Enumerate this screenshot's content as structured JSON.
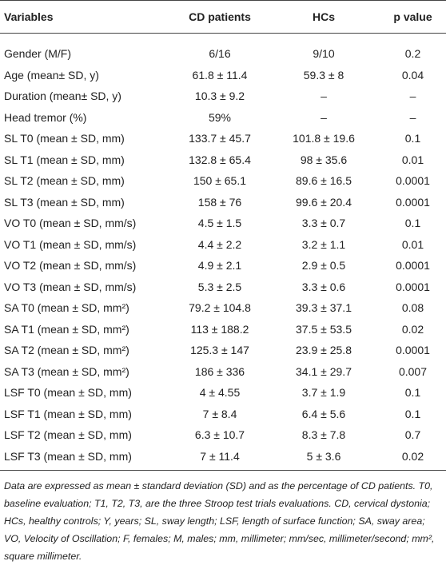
{
  "table": {
    "header": [
      "Variables",
      "CD patients",
      "HCs",
      "p value"
    ],
    "rows": [
      [
        "Gender (M/F)",
        "6/16",
        "9/10",
        "0.2"
      ],
      [
        "Age (mean± SD, y)",
        "61.8 ± 11.4",
        "59.3 ± 8",
        "0.04"
      ],
      [
        "Duration (mean± SD, y)",
        "10.3 ± 9.2",
        "–",
        "–"
      ],
      [
        "Head tremor (%)",
        "59%",
        "–",
        "–"
      ],
      [
        "SL T0 (mean ± SD, mm)",
        "133.7 ± 45.7",
        "101.8 ± 19.6",
        "0.1"
      ],
      [
        "SL T1 (mean ± SD, mm)",
        "132.8 ± 65.4",
        "98 ± 35.6",
        "0.01"
      ],
      [
        "SL T2 (mean ± SD, mm)",
        "150 ± 65.1",
        "89.6 ± 16.5",
        "0.0001"
      ],
      [
        "SL T3 (mean ± SD, mm)",
        "158 ± 76",
        "99.6 ± 20.4",
        "0.0001"
      ],
      [
        "VO T0 (mean ± SD, mm/s)",
        "4.5 ± 1.5",
        "3.3 ± 0.7",
        "0.1"
      ],
      [
        "VO T1 (mean ± SD, mm/s)",
        "4.4 ± 2.2",
        "3.2 ± 1.1",
        "0.01"
      ],
      [
        "VO T2 (mean ± SD, mm/s)",
        "4.9 ± 2.1",
        "2.9 ± 0.5",
        "0.0001"
      ],
      [
        "VO T3 (mean ± SD, mm/s)",
        "5.3 ± 2.5",
        "3.3 ± 0.6",
        "0.0001"
      ],
      [
        "SA T0 (mean ± SD, mm²)",
        "79.2 ± 104.8",
        "39.3 ± 37.1",
        "0.08"
      ],
      [
        "SA T1 (mean ± SD, mm²)",
        "113 ± 188.2",
        "37.5 ± 53.5",
        "0.02"
      ],
      [
        "SA T2 (mean ± SD, mm²)",
        "125.3 ± 147",
        "23.9 ± 25.8",
        "0.0001"
      ],
      [
        "SA T3 (mean ± SD, mm²)",
        "186 ± 336",
        "34.1 ± 29.7",
        "0.007"
      ],
      [
        "LSF T0 (mean ± SD, mm)",
        "4 ± 4.55",
        "3.7 ± 1.9",
        "0.1"
      ],
      [
        "LSF T1 (mean ± SD, mm)",
        "7 ± 8.4",
        "6.4 ± 5.6",
        "0.1"
      ],
      [
        "LSF T2 (mean ± SD, mm)",
        "6.3 ± 10.7",
        "8.3 ± 7.8",
        "0.7"
      ],
      [
        "LSF T3 (mean ± SD, mm)",
        "7 ± 11.4",
        "5 ± 3.6",
        "0.02"
      ]
    ],
    "note": "Data are expressed as mean ± standard deviation (SD) and as the percentage of CD patients. T0, baseline evaluation; T1, T2, T3, are the three Stroop test trials evaluations. CD, cervical dystonia; HCs, healthy controls; Y, years; SL, sway length; LSF, length of surface function; SA, sway area; VO, Velocity of Oscillation; F, females; M, males; mm, millimeter; mm/sec, millimeter/second; mm², square millimeter."
  }
}
